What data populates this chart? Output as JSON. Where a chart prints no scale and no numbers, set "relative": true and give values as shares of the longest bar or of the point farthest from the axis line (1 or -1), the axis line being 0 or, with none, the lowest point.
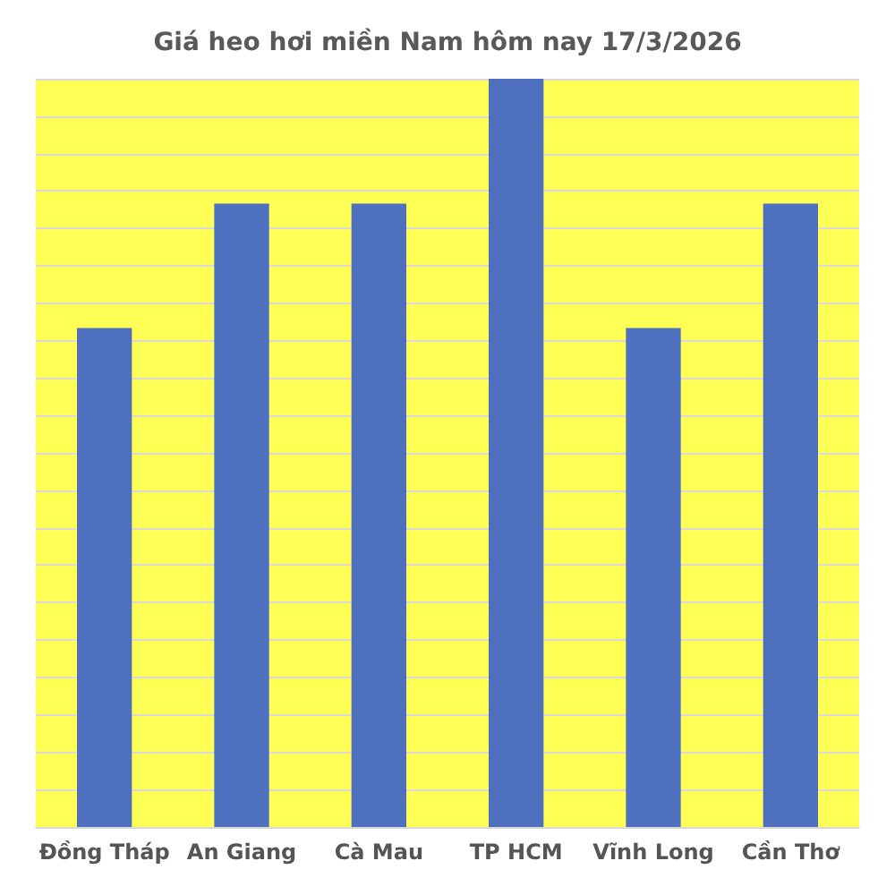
{
  "chart_data": {
    "type": "bar",
    "title": "Giá heo hơi miền Nam hôm nay 17/3/2026",
    "categories": [
      "Đồng Tháp",
      "An Giang",
      "Cà Mau",
      "TP HCM",
      "Vĩnh Long",
      "Cần Thơ"
    ],
    "values": [
      0.667,
      0.833,
      0.833,
      1,
      0.667,
      0.833
    ],
    "color": "#4e70bf",
    "relative": true,
    "grid": "y"
  }
}
